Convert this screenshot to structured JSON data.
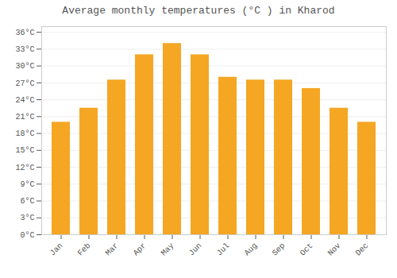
{
  "chart_data": {
    "type": "bar",
    "title": "Average monthly temperatures (°C ) in Kharod",
    "categories": [
      "Jan",
      "Feb",
      "Mar",
      "Apr",
      "May",
      "Jun",
      "Jul",
      "Aug",
      "Sep",
      "Oct",
      "Nov",
      "Dec"
    ],
    "values": [
      20,
      22.5,
      27.5,
      32,
      34,
      32,
      28,
      27.5,
      27.5,
      26,
      22.5,
      20
    ],
    "color": "#F5A623",
    "ylim": [
      0,
      37
    ],
    "yticks": [
      {
        "value": 0,
        "label": "0°C"
      },
      {
        "value": 3,
        "label": "3°C"
      },
      {
        "value": 6,
        "label": "6°C"
      },
      {
        "value": 9,
        "label": "9°C"
      },
      {
        "value": 12,
        "label": "12°C"
      },
      {
        "value": 15,
        "label": "15°C"
      },
      {
        "value": 18,
        "label": "18°C"
      },
      {
        "value": 21,
        "label": "21°C"
      },
      {
        "value": 24,
        "label": "24°C"
      },
      {
        "value": 27,
        "label": "27°C"
      },
      {
        "value": 30,
        "label": "30°C"
      },
      {
        "value": 33,
        "label": "33°C"
      },
      {
        "value": 36,
        "label": "36°C"
      }
    ],
    "grid": true
  }
}
